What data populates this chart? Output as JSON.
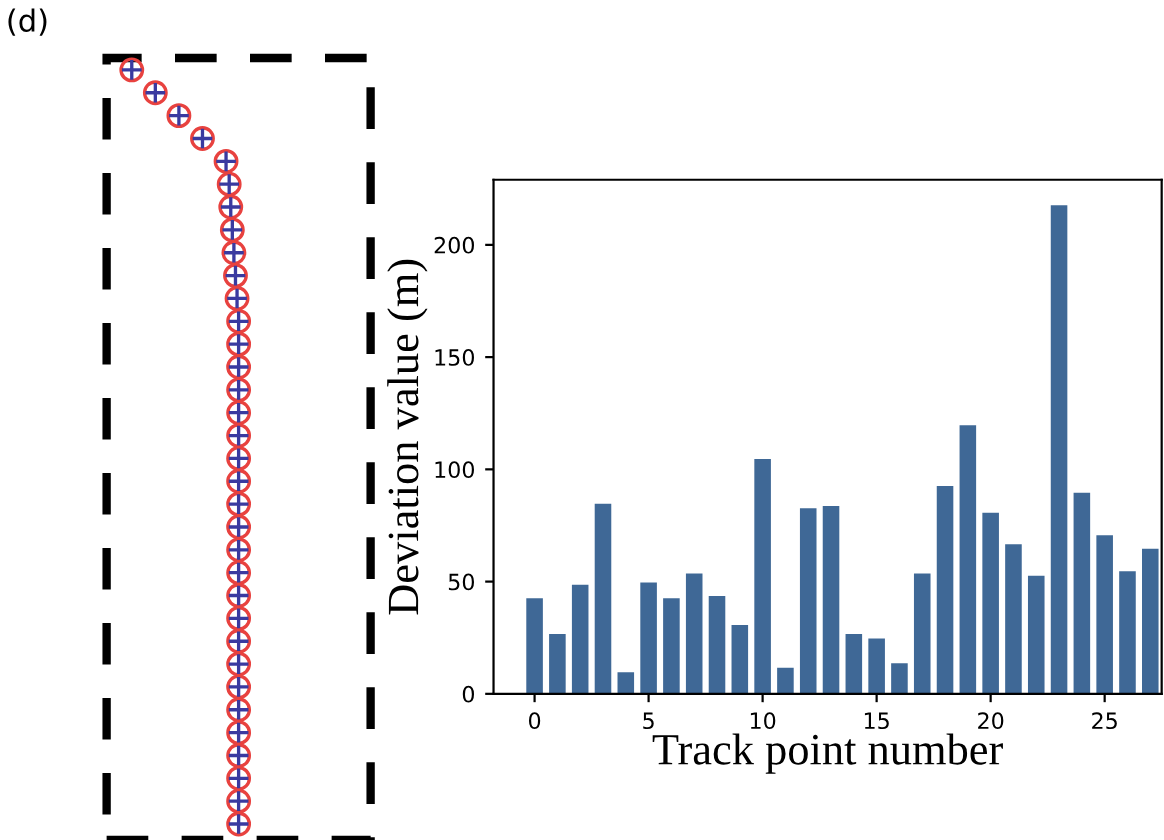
{
  "chart_data": {
    "type": "bar",
    "xlabel": "Track point number",
    "ylabel": "Deviation value (m)",
    "x": [
      0,
      1,
      2,
      3,
      4,
      5,
      6,
      7,
      8,
      9,
      10,
      11,
      12,
      13,
      14,
      15,
      16,
      17,
      18,
      19,
      20,
      21,
      22,
      23,
      24,
      25,
      26,
      27
    ],
    "values": [
      43,
      27,
      49,
      85,
      10,
      50,
      43,
      54,
      44,
      31,
      105,
      12,
      83,
      84,
      27,
      25,
      14,
      54,
      93,
      120,
      81,
      67,
      53,
      218,
      90,
      71,
      55,
      65
    ],
    "color": "#3f6896",
    "xlim": [
      -1.8,
      27.5
    ],
    "xticks": [
      0,
      5,
      10,
      15,
      20,
      25
    ],
    "ylim": [
      0,
      229
    ],
    "yticks": [
      0,
      50,
      100,
      150,
      200
    ],
    "grid": false,
    "annotations": [
      "(d)"
    ]
  }
}
